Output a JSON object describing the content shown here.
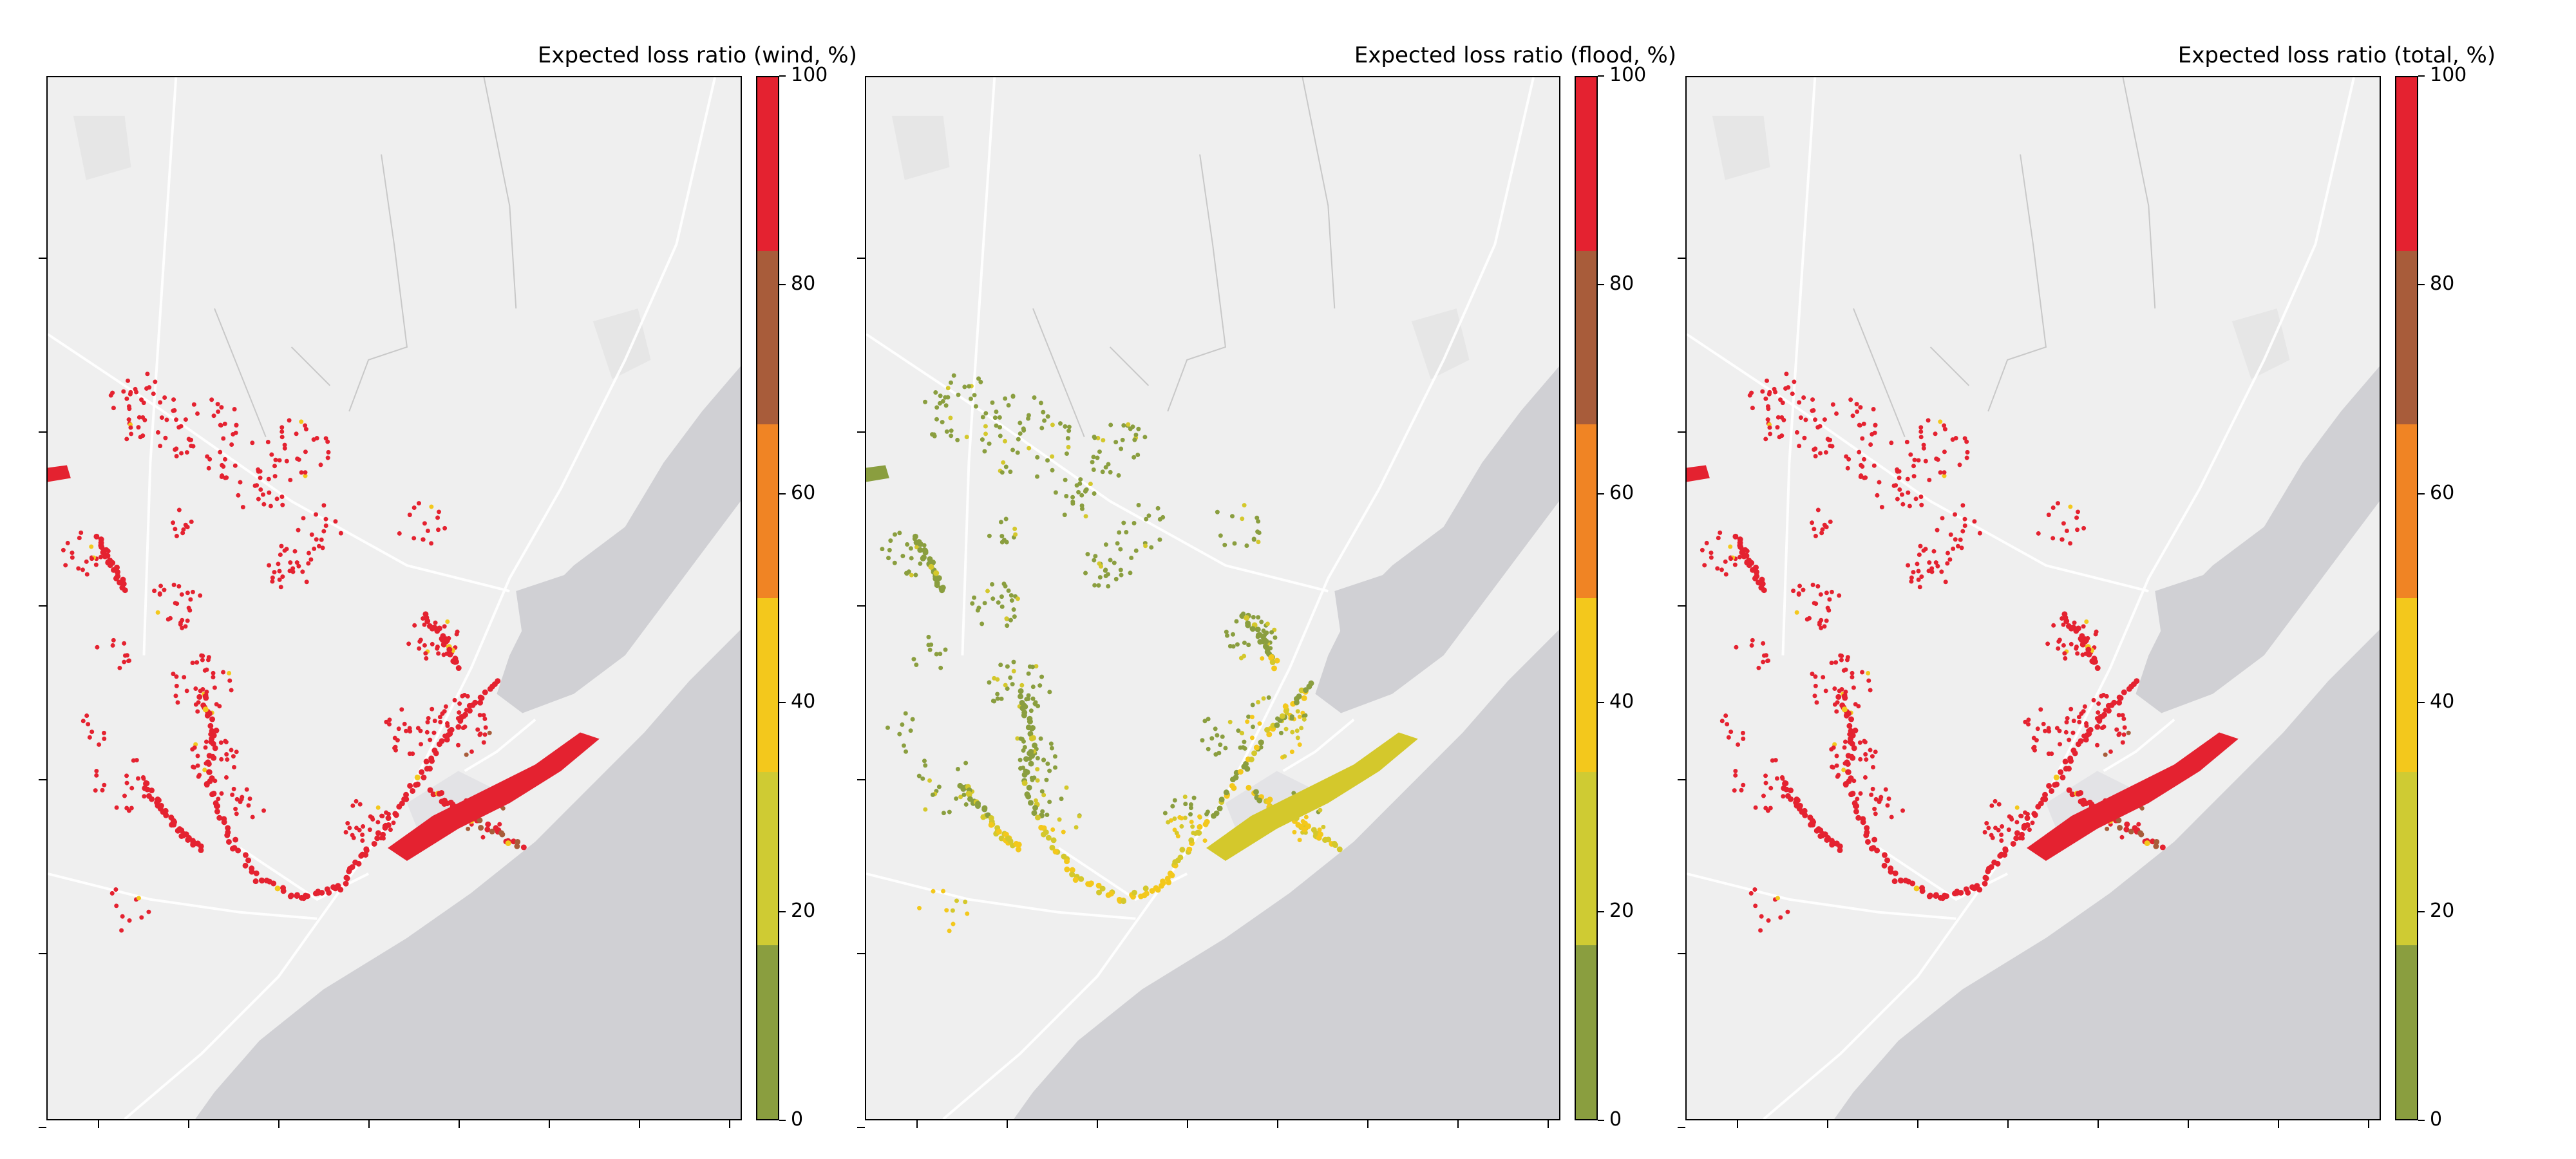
{
  "panels": [
    {
      "id": "wind",
      "colorbar_label": "Expected loss ratio (wind, %)",
      "hazard": "wind"
    },
    {
      "id": "flood",
      "colorbar_label": "Expected loss ratio (flood, %)",
      "hazard": "flood"
    },
    {
      "id": "total",
      "colorbar_label": "Expected loss ratio (total, %)",
      "hazard": "total"
    }
  ],
  "colorbar": {
    "ticks": [
      "0",
      "20",
      "40",
      "60",
      "80",
      "100"
    ],
    "range": [
      0,
      100
    ],
    "bins": [
      {
        "from": 0,
        "to": 16.7,
        "color": "#8a9e3f"
      },
      {
        "from": 16.7,
        "to": 33.3,
        "color": "#cfcb33"
      },
      {
        "from": 33.3,
        "to": 50,
        "color": "#f3c81c"
      },
      {
        "from": 50,
        "to": 66.7,
        "color": "#f08424"
      },
      {
        "from": 66.7,
        "to": 83.3,
        "color": "#a85c3a"
      },
      {
        "from": 83.3,
        "to": 100,
        "color": "#e42230"
      }
    ]
  },
  "colors": {
    "land": "#efefef",
    "water": "#d0d0d4",
    "road": "#ffffff",
    "wind_points": "#e42230",
    "flood_low": "#8a9e3f",
    "flood_mid": "#d4c82c"
  }
}
